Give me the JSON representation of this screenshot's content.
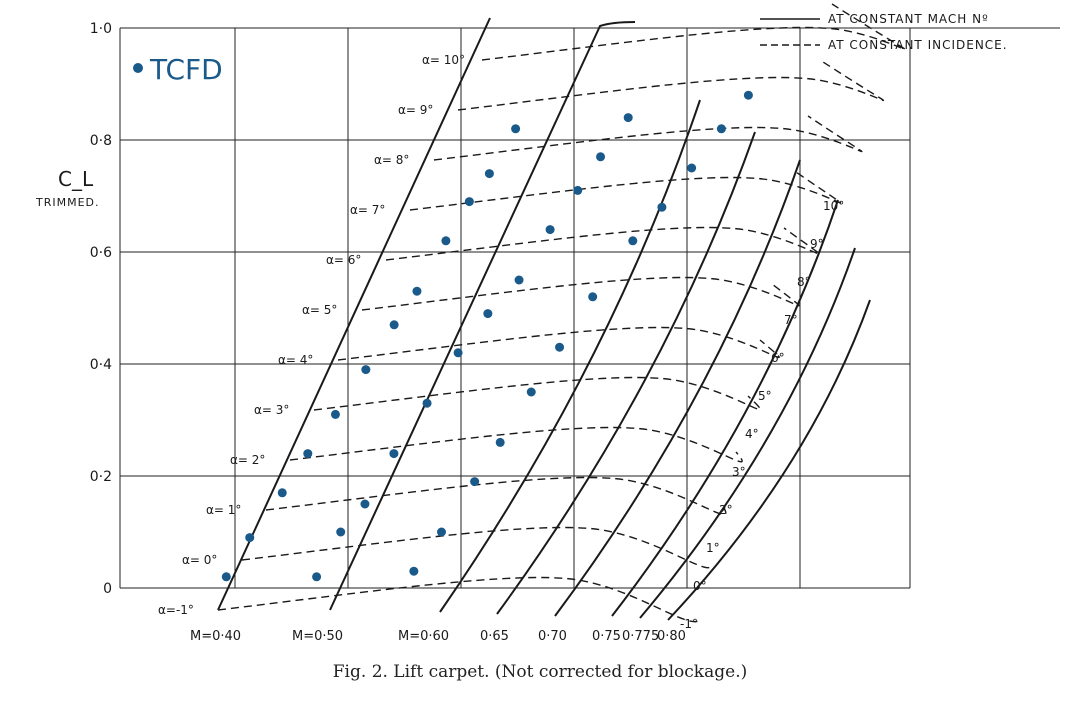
{
  "caption": "Fig. 2.   Lift carpet.   (Not corrected for blockage.)",
  "colors": {
    "ink": "#1a1a1a",
    "tcfd": "#1a5a8a",
    "grid": "#222222"
  },
  "legend": {
    "solid": "AT CONSTANT  MACH  Nº",
    "dashed": "AT CONSTANT  INCIDENCE."
  },
  "chart_data": {
    "type": "scatter",
    "ylabel": "C_L",
    "ylabel_sub": "TRIMMED.",
    "ylim": [
      0,
      1.0
    ],
    "y_ticks": [
      "0",
      "0·2",
      "0·4",
      "0·6",
      "0·8",
      "1·0"
    ],
    "grid": true,
    "mach_labels": [
      "M=0·40",
      "M=0·50",
      "M=0·60",
      "0·65",
      "0·70",
      "0·75",
      "0·775",
      "0·80"
    ],
    "alpha_left_labels": [
      "α=-1°",
      "α= 0°",
      "α= 1°",
      "α= 2°",
      "α= 3°",
      "α= 4°",
      "α= 5°",
      "α= 6°",
      "α= 7°",
      "α= 8°",
      "α= 9°",
      "α= 10°"
    ],
    "alpha_right_labels": [
      "-1°",
      "0°",
      "1°",
      "2°",
      "3°",
      "4°",
      "5°",
      "6°",
      "7°",
      "8°",
      "9°",
      "10°"
    ],
    "series": [
      {
        "name": "TCFD",
        "points": [
          [
            -0.02,
            0.02
          ],
          [
            0.0,
            0.09
          ],
          [
            0.05,
            0.17
          ],
          [
            0.08,
            0.24
          ],
          [
            0.12,
            0.31
          ],
          [
            0.16,
            0.39
          ],
          [
            0.19,
            0.47
          ],
          [
            0.22,
            0.53
          ],
          [
            0.24,
            0.62
          ],
          [
            0.26,
            0.69
          ],
          [
            0.29,
            0.74
          ],
          [
            0.31,
            0.82
          ],
          [
            0.41,
            0.02
          ],
          [
            0.42,
            0.1
          ],
          [
            0.47,
            0.15
          ],
          [
            0.49,
            0.24
          ],
          [
            0.53,
            0.33
          ],
          [
            0.56,
            0.42
          ],
          [
            0.61,
            0.49
          ],
          [
            0.68,
            0.55
          ],
          [
            0.71,
            0.64
          ],
          [
            0.75,
            0.71
          ],
          [
            0.78,
            0.77
          ],
          [
            0.82,
            0.84
          ],
          [
            0.86,
            0.03
          ],
          [
            0.9,
            0.1
          ],
          [
            0.94,
            0.19
          ],
          [
            0.97,
            0.26
          ],
          [
            1.0,
            0.35
          ],
          [
            1.03,
            0.43
          ],
          [
            1.07,
            0.52
          ],
          [
            1.13,
            0.62
          ],
          [
            1.19,
            0.68
          ],
          [
            1.24,
            0.75
          ],
          [
            1.29,
            0.82
          ],
          [
            1.34,
            0.88
          ]
        ]
      }
    ]
  }
}
